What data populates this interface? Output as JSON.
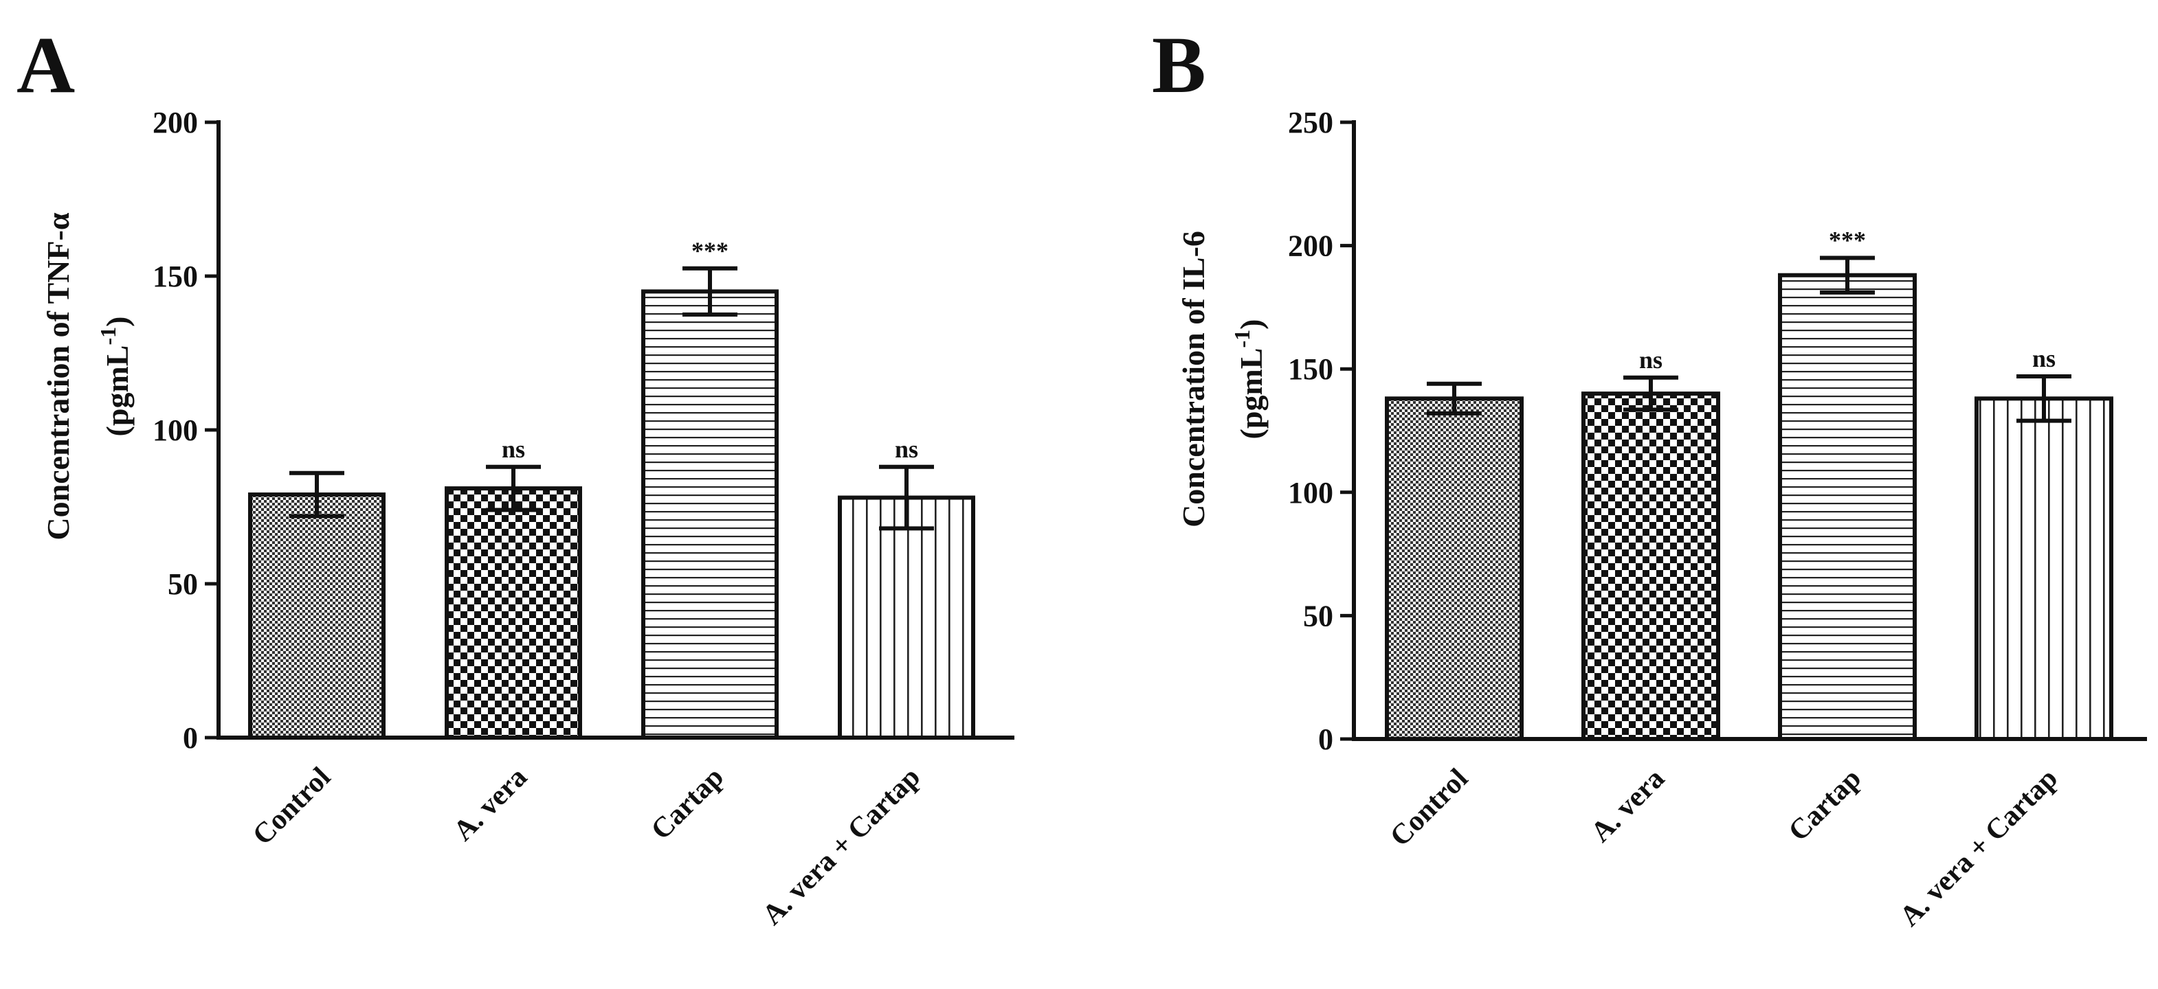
{
  "chart_data": [
    {
      "type": "bar",
      "panel": "A",
      "title": "",
      "ylabel": "Concentration of TNF-α",
      "ylabel_unit_prefix": "(pgmL",
      "ylabel_unit_sup": "-1",
      "ylabel_unit_suffix": ")",
      "xlabel": "",
      "ylim": [
        0,
        200
      ],
      "yticks": [
        0,
        50,
        100,
        150,
        200
      ],
      "categories": [
        "Control",
        "A. vera",
        "Cartap",
        "A. vera + Cartap"
      ],
      "values": [
        79,
        81,
        145,
        78
      ],
      "errors": [
        7,
        7,
        7.5,
        10
      ],
      "significance": [
        "",
        "ns",
        "***",
        "ns"
      ],
      "patterns": [
        "fine-checker",
        "coarse-checker",
        "horizontal-lines",
        "vertical-lines"
      ]
    },
    {
      "type": "bar",
      "panel": "B",
      "title": "",
      "ylabel": "Concentration of IL-6",
      "ylabel_unit_prefix": "(pgmL",
      "ylabel_unit_sup": "-1",
      "ylabel_unit_suffix": ")",
      "xlabel": "",
      "ylim": [
        0,
        250
      ],
      "yticks": [
        0,
        50,
        100,
        150,
        200,
        250
      ],
      "categories": [
        "Control",
        "A. vera",
        "Cartap",
        "A. vera + Cartap"
      ],
      "values": [
        138,
        140,
        188,
        138
      ],
      "errors": [
        6,
        6.5,
        7,
        9
      ],
      "significance": [
        "",
        "ns",
        "***",
        "ns"
      ],
      "patterns": [
        "fine-checker",
        "coarse-checker",
        "horizontal-lines",
        "vertical-lines"
      ]
    }
  ]
}
